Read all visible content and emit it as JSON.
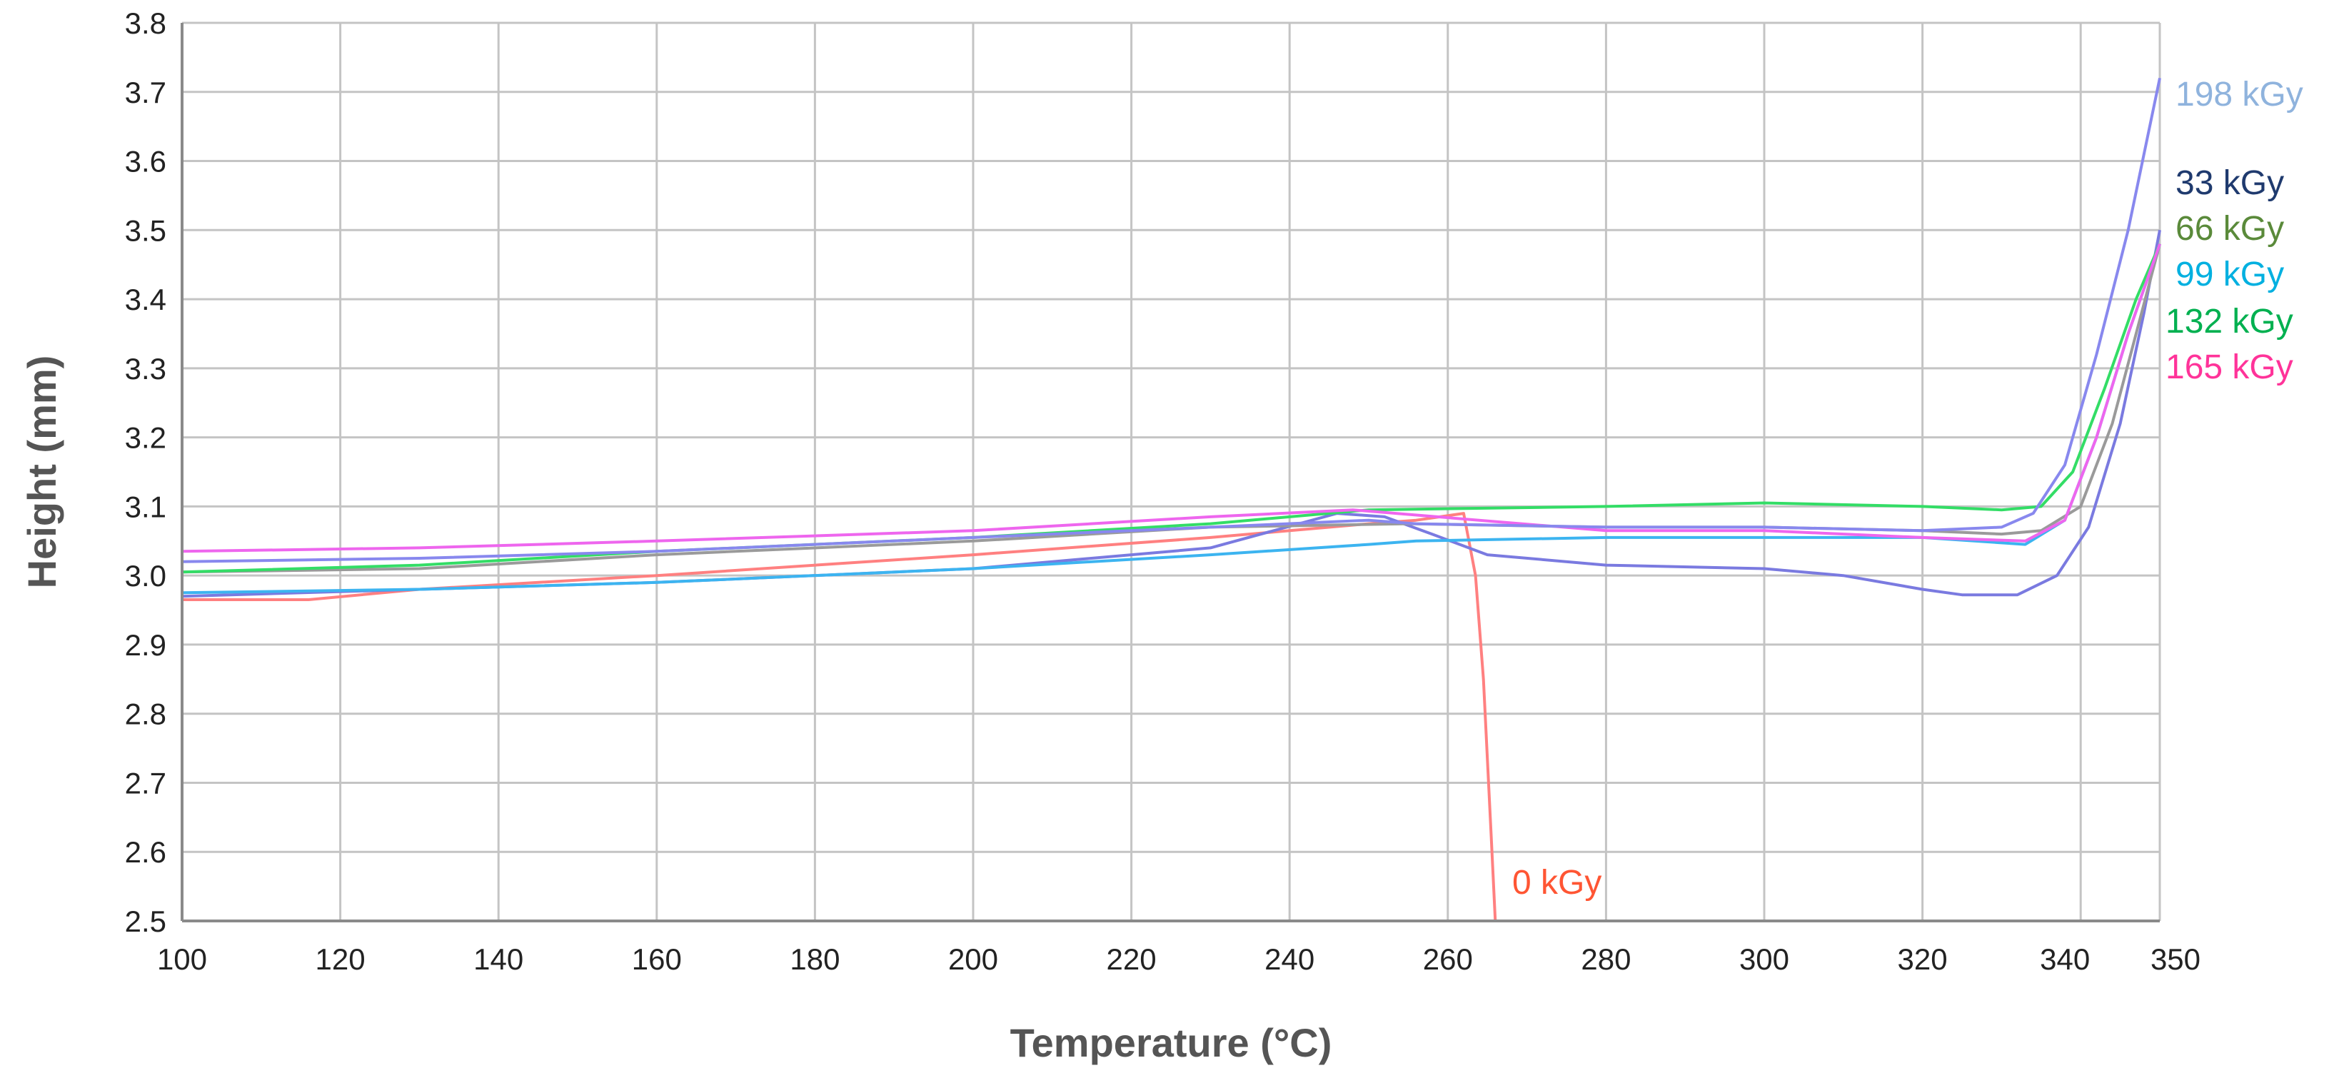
{
  "chart_data": {
    "type": "line",
    "title": "",
    "xlabel": "Temperature (°C)",
    "ylabel": "Height (mm)",
    "xlim": [
      100,
      350
    ],
    "ylim": [
      2.5,
      3.8
    ],
    "grid": true,
    "x_ticks": [
      "100",
      "120",
      "140",
      "160",
      "180",
      "200",
      "220",
      "240",
      "260",
      "280",
      "300",
      "320",
      "340",
      "350"
    ],
    "x_tick_values": [
      100,
      120,
      140,
      160,
      180,
      200,
      220,
      240,
      260,
      280,
      300,
      320,
      340,
      350
    ],
    "y_ticks": [
      "2.5",
      "2.6",
      "2.7",
      "2.8",
      "2.9",
      "3.0",
      "3.1",
      "3.2",
      "3.3",
      "3.4",
      "3.5",
      "3.6",
      "3.7",
      "3.8"
    ],
    "y_tick_values": [
      2.5,
      2.6,
      2.7,
      2.8,
      2.9,
      3.0,
      3.1,
      3.2,
      3.3,
      3.4,
      3.5,
      3.6,
      3.7,
      3.8
    ],
    "series": [
      {
        "name": "0 kGy",
        "label": "0 kGy",
        "color": "#ff8080",
        "label_color": "#ff5533",
        "x": [
          100,
          116,
          130,
          160,
          200,
          230,
          250,
          256,
          262,
          263.5,
          264.5,
          265.5,
          266
        ],
        "y": [
          2.965,
          2.965,
          2.98,
          3.0,
          3.03,
          3.055,
          3.075,
          3.08,
          3.09,
          3.0,
          2.85,
          2.62,
          2.5
        ]
      },
      {
        "name": "33 kGy",
        "label": "33 kGy",
        "color": "#7a7ae0",
        "label_color": "#1f3a6e",
        "x": [
          100,
          130,
          160,
          200,
          230,
          246,
          252,
          258,
          265,
          280,
          300,
          310,
          320,
          325,
          332,
          337,
          341,
          345,
          348,
          350
        ],
        "y": [
          2.97,
          2.98,
          2.99,
          3.01,
          3.04,
          3.09,
          3.085,
          3.06,
          3.03,
          3.015,
          3.01,
          3.0,
          2.98,
          2.972,
          2.972,
          3.0,
          3.07,
          3.22,
          3.38,
          3.5
        ]
      },
      {
        "name": "66 kGy",
        "label": "66 kGy",
        "color": "#9a9a9a",
        "label_color": "#5a8a3a",
        "x": [
          100,
          130,
          160,
          200,
          230,
          255,
          280,
          300,
          320,
          330,
          335,
          340,
          344,
          347,
          350
        ],
        "y": [
          3.005,
          3.01,
          3.03,
          3.05,
          3.07,
          3.075,
          3.07,
          3.07,
          3.065,
          3.06,
          3.065,
          3.1,
          3.22,
          3.35,
          3.48
        ]
      },
      {
        "name": "99 kGy",
        "label": "99 kGy",
        "color": "#3cb4f0",
        "label_color": "#00b0e0",
        "x": [
          100,
          130,
          160,
          200,
          230,
          250,
          256,
          280,
          300,
          320,
          333,
          338,
          342,
          346,
          350
        ],
        "y": [
          2.975,
          2.98,
          2.99,
          3.01,
          3.03,
          3.045,
          3.05,
          3.055,
          3.055,
          3.055,
          3.045,
          3.08,
          3.2,
          3.35,
          3.48
        ]
      },
      {
        "name": "132 kGy",
        "label": "132 kGy",
        "color": "#33dd66",
        "label_color": "#00b050",
        "x": [
          100,
          130,
          160,
          200,
          230,
          250,
          280,
          300,
          320,
          330,
          335,
          339,
          343,
          347,
          350
        ],
        "y": [
          3.005,
          3.015,
          3.035,
          3.055,
          3.075,
          3.095,
          3.1,
          3.105,
          3.1,
          3.095,
          3.1,
          3.15,
          3.27,
          3.4,
          3.48
        ]
      },
      {
        "name": "165 kGy",
        "label": "165 kGy",
        "color": "#ee66ee",
        "label_color": "#ff3399",
        "x": [
          100,
          130,
          160,
          200,
          230,
          248,
          280,
          300,
          320,
          333,
          338,
          342,
          346,
          350
        ],
        "y": [
          3.035,
          3.04,
          3.05,
          3.065,
          3.085,
          3.095,
          3.065,
          3.065,
          3.055,
          3.05,
          3.08,
          3.2,
          3.35,
          3.48
        ]
      },
      {
        "name": "198 kGy",
        "label": "198 kGy",
        "color": "#8888ee",
        "label_color": "#8fb3dd",
        "x": [
          100,
          130,
          160,
          200,
          230,
          250,
          256,
          280,
          300,
          320,
          330,
          334,
          338,
          342,
          346,
          350
        ],
        "y": [
          3.02,
          3.025,
          3.035,
          3.055,
          3.07,
          3.08,
          3.075,
          3.07,
          3.07,
          3.065,
          3.07,
          3.09,
          3.16,
          3.32,
          3.5,
          3.72
        ]
      }
    ]
  }
}
